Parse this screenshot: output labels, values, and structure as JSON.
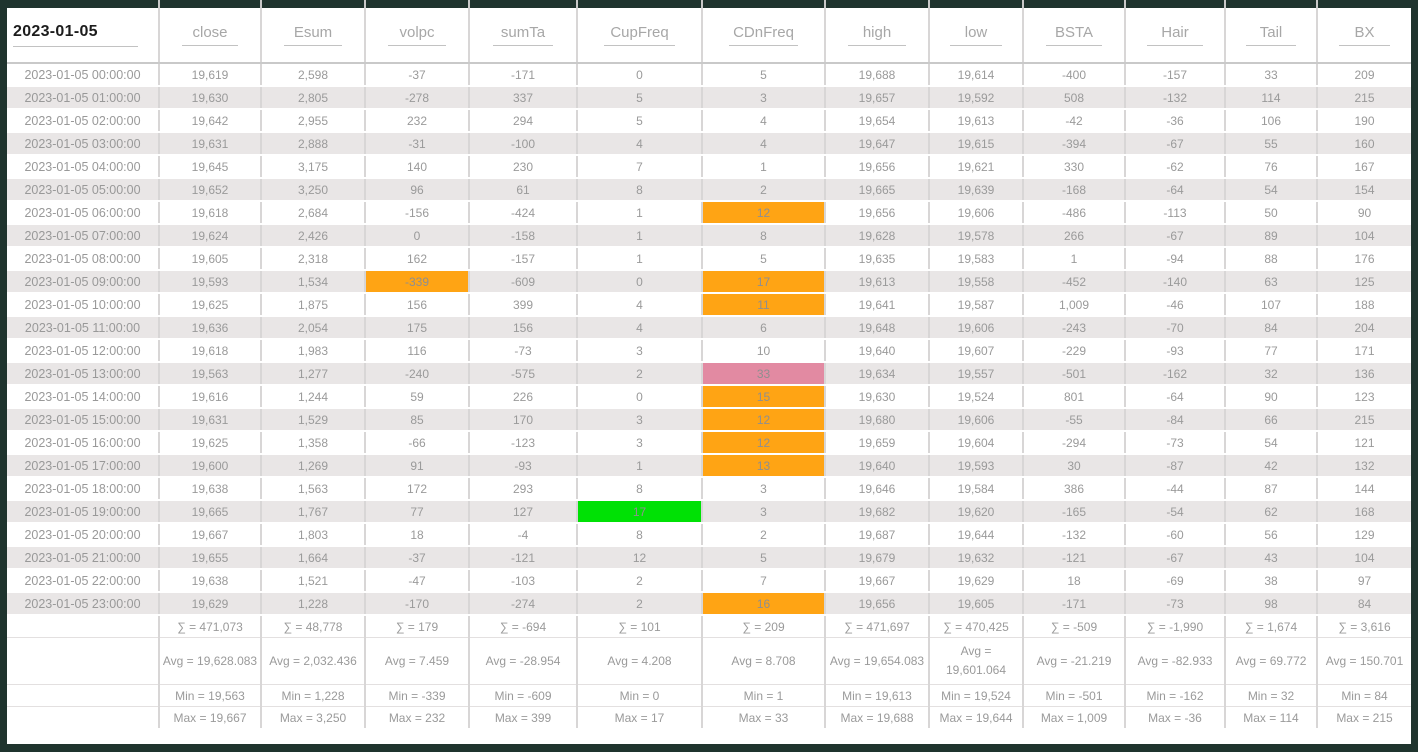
{
  "header": {
    "date_label": "2023-01-05",
    "columns": [
      "close",
      "Esum",
      "volpc",
      "sumTa",
      "CupFreq",
      "CDnFreq",
      "high",
      "low",
      "BSTA",
      "Hair",
      "Tail",
      "BX"
    ]
  },
  "colors": {
    "frame": "#1f342e",
    "orange": "#ffa414",
    "green": "#00e105",
    "pink": "#e28aa2",
    "row_alt": "#e9e6e6"
  },
  "rows": [
    {
      "time": "2023-01-05 00:00:00",
      "values": [
        "19,619",
        "2,598",
        "-37",
        "-171",
        "0",
        "5",
        "19,688",
        "19,614",
        "-400",
        "-157",
        "33",
        "209"
      ],
      "hl": {}
    },
    {
      "time": "2023-01-05 01:00:00",
      "values": [
        "19,630",
        "2,805",
        "-278",
        "337",
        "5",
        "3",
        "19,657",
        "19,592",
        "508",
        "-132",
        "114",
        "215"
      ],
      "hl": {}
    },
    {
      "time": "2023-01-05 02:00:00",
      "values": [
        "19,642",
        "2,955",
        "232",
        "294",
        "5",
        "4",
        "19,654",
        "19,613",
        "-42",
        "-36",
        "106",
        "190"
      ],
      "hl": {}
    },
    {
      "time": "2023-01-05 03:00:00",
      "values": [
        "19,631",
        "2,888",
        "-31",
        "-100",
        "4",
        "4",
        "19,647",
        "19,615",
        "-394",
        "-67",
        "55",
        "160"
      ],
      "hl": {}
    },
    {
      "time": "2023-01-05 04:00:00",
      "values": [
        "19,645",
        "3,175",
        "140",
        "230",
        "7",
        "1",
        "19,656",
        "19,621",
        "330",
        "-62",
        "76",
        "167"
      ],
      "hl": {}
    },
    {
      "time": "2023-01-05 05:00:00",
      "values": [
        "19,652",
        "3,250",
        "96",
        "61",
        "8",
        "2",
        "19,665",
        "19,639",
        "-168",
        "-64",
        "54",
        "154"
      ],
      "hl": {}
    },
    {
      "time": "2023-01-05 06:00:00",
      "values": [
        "19,618",
        "2,684",
        "-156",
        "-424",
        "1",
        "12",
        "19,656",
        "19,606",
        "-486",
        "-113",
        "50",
        "90"
      ],
      "hl": {
        "5": "orange"
      }
    },
    {
      "time": "2023-01-05 07:00:00",
      "values": [
        "19,624",
        "2,426",
        "0",
        "-158",
        "1",
        "8",
        "19,628",
        "19,578",
        "266",
        "-67",
        "89",
        "104"
      ],
      "hl": {}
    },
    {
      "time": "2023-01-05 08:00:00",
      "values": [
        "19,605",
        "2,318",
        "162",
        "-157",
        "1",
        "5",
        "19,635",
        "19,583",
        "1",
        "-94",
        "88",
        "176"
      ],
      "hl": {}
    },
    {
      "time": "2023-01-05 09:00:00",
      "values": [
        "19,593",
        "1,534",
        "-339",
        "-609",
        "0",
        "17",
        "19,613",
        "19,558",
        "-452",
        "-140",
        "63",
        "125"
      ],
      "hl": {
        "2": "orange",
        "5": "orange"
      }
    },
    {
      "time": "2023-01-05 10:00:00",
      "values": [
        "19,625",
        "1,875",
        "156",
        "399",
        "4",
        "11",
        "19,641",
        "19,587",
        "1,009",
        "-46",
        "107",
        "188"
      ],
      "hl": {
        "5": "orange"
      }
    },
    {
      "time": "2023-01-05 11:00:00",
      "values": [
        "19,636",
        "2,054",
        "175",
        "156",
        "4",
        "6",
        "19,648",
        "19,606",
        "-243",
        "-70",
        "84",
        "204"
      ],
      "hl": {}
    },
    {
      "time": "2023-01-05 12:00:00",
      "values": [
        "19,618",
        "1,983",
        "116",
        "-73",
        "3",
        "10",
        "19,640",
        "19,607",
        "-229",
        "-93",
        "77",
        "171"
      ],
      "hl": {}
    },
    {
      "time": "2023-01-05 13:00:00",
      "values": [
        "19,563",
        "1,277",
        "-240",
        "-575",
        "2",
        "33",
        "19,634",
        "19,557",
        "-501",
        "-162",
        "32",
        "136"
      ],
      "hl": {
        "5": "pink"
      }
    },
    {
      "time": "2023-01-05 14:00:00",
      "values": [
        "19,616",
        "1,244",
        "59",
        "226",
        "0",
        "15",
        "19,630",
        "19,524",
        "801",
        "-64",
        "90",
        "123"
      ],
      "hl": {
        "5": "orange"
      }
    },
    {
      "time": "2023-01-05 15:00:00",
      "values": [
        "19,631",
        "1,529",
        "85",
        "170",
        "3",
        "12",
        "19,680",
        "19,606",
        "-55",
        "-84",
        "66",
        "215"
      ],
      "hl": {
        "5": "orange"
      }
    },
    {
      "time": "2023-01-05 16:00:00",
      "values": [
        "19,625",
        "1,358",
        "-66",
        "-123",
        "3",
        "12",
        "19,659",
        "19,604",
        "-294",
        "-73",
        "54",
        "121"
      ],
      "hl": {
        "5": "orange"
      }
    },
    {
      "time": "2023-01-05 17:00:00",
      "values": [
        "19,600",
        "1,269",
        "91",
        "-93",
        "1",
        "13",
        "19,640",
        "19,593",
        "30",
        "-87",
        "42",
        "132"
      ],
      "hl": {
        "5": "orange"
      }
    },
    {
      "time": "2023-01-05 18:00:00",
      "values": [
        "19,638",
        "1,563",
        "172",
        "293",
        "8",
        "3",
        "19,646",
        "19,584",
        "386",
        "-44",
        "87",
        "144"
      ],
      "hl": {}
    },
    {
      "time": "2023-01-05 19:00:00",
      "values": [
        "19,665",
        "1,767",
        "77",
        "127",
        "17",
        "3",
        "19,682",
        "19,620",
        "-165",
        "-54",
        "62",
        "168"
      ],
      "hl": {
        "4": "green"
      }
    },
    {
      "time": "2023-01-05 20:00:00",
      "values": [
        "19,667",
        "1,803",
        "18",
        "-4",
        "8",
        "2",
        "19,687",
        "19,644",
        "-132",
        "-60",
        "56",
        "129"
      ],
      "hl": {}
    },
    {
      "time": "2023-01-05 21:00:00",
      "values": [
        "19,655",
        "1,664",
        "-37",
        "-121",
        "12",
        "5",
        "19,679",
        "19,632",
        "-121",
        "-67",
        "43",
        "104"
      ],
      "hl": {}
    },
    {
      "time": "2023-01-05 22:00:00",
      "values": [
        "19,638",
        "1,521",
        "-47",
        "-103",
        "2",
        "7",
        "19,667",
        "19,629",
        "18",
        "-69",
        "38",
        "97"
      ],
      "hl": {}
    },
    {
      "time": "2023-01-05 23:00:00",
      "values": [
        "19,629",
        "1,228",
        "-170",
        "-274",
        "2",
        "16",
        "19,656",
        "19,605",
        "-171",
        "-73",
        "98",
        "84"
      ],
      "hl": {
        "5": "orange"
      }
    }
  ],
  "summary": {
    "sum": [
      "∑ = 471,073",
      "∑ = 48,778",
      "∑ = 179",
      "∑ = -694",
      "∑ = 101",
      "∑ = 209",
      "∑ = 471,697",
      "∑ = 470,425",
      "∑ = -509",
      "∑ = -1,990",
      "∑ = 1,674",
      "∑ = 3,616"
    ],
    "avg": [
      "Avg = 19,628.083",
      "Avg = 2,032.436",
      "Avg = 7.459",
      "Avg = -28.954",
      "Avg = 4.208",
      "Avg = 8.708",
      "Avg = 19,654.083",
      "Avg = 19,601.064",
      "Avg = -21.219",
      "Avg = -82.933",
      "Avg = 69.772",
      "Avg = 150.701"
    ],
    "min": [
      "Min = 19,563",
      "Min = 1,228",
      "Min = -339",
      "Min = -609",
      "Min = 0",
      "Min = 1",
      "Min = 19,613",
      "Min = 19,524",
      "Min = -501",
      "Min = -162",
      "Min = 32",
      "Min = 84"
    ],
    "max": [
      "Max = 19,667",
      "Max = 3,250",
      "Max = 232",
      "Max = 399",
      "Max = 17",
      "Max = 33",
      "Max = 19,688",
      "Max = 19,644",
      "Max = 1,009",
      "Max = -36",
      "Max = 114",
      "Max = 215"
    ]
  }
}
